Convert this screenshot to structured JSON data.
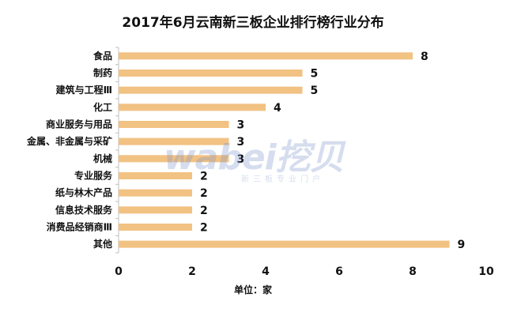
{
  "chart_data": {
    "type": "bar",
    "orientation": "horizontal",
    "title": "2017年6月云南新三板企业排行榜行业分布",
    "xlabel": "单位：家",
    "ylabel": "",
    "categories": [
      "食品",
      "制药",
      "建筑与工程Ⅲ",
      "化工",
      "商业服务与用品",
      "金属、非金属与采矿",
      "机械",
      "专业服务",
      "纸与林木产品",
      "信息技术服务",
      "消费品经销商Ⅲ",
      "其他"
    ],
    "values": [
      8,
      5,
      5,
      4,
      3,
      3,
      3,
      2,
      2,
      2,
      2,
      9
    ],
    "xlim": [
      0,
      10
    ],
    "xticks": [
      0,
      2,
      4,
      6,
      8,
      10
    ],
    "bar_color": "#f2c283",
    "grid": false,
    "legend": "none"
  },
  "watermark": {
    "text": "wabei挖贝",
    "subtext": "新三板专业门户"
  }
}
